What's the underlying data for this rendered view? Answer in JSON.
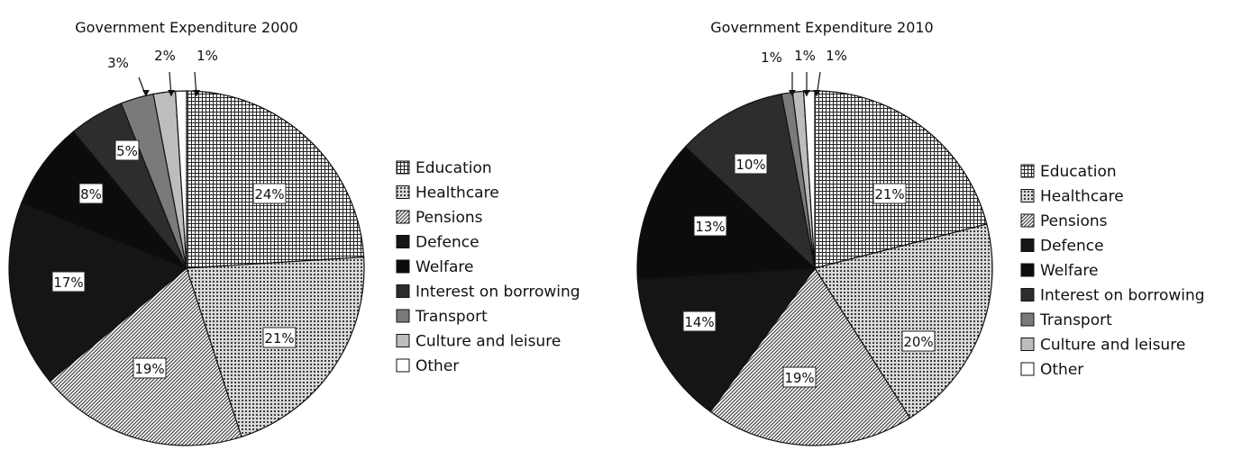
{
  "chart_data": [
    {
      "type": "pie",
      "title": "Government Expenditure 2000",
      "categories": [
        "Education",
        "Healthcare",
        "Pensions",
        "Defence",
        "Welfare",
        "Interest on borrowing",
        "Transport",
        "Culture and leisure",
        "Other"
      ],
      "values": [
        24,
        21,
        19,
        17,
        8,
        5,
        3,
        2,
        1
      ],
      "labels": [
        "24%",
        "21%",
        "19%",
        "17%",
        "8%",
        "5%",
        "3%",
        "2%",
        "1%"
      ],
      "legend_position": "right"
    },
    {
      "type": "pie",
      "title": "Government Expenditure 2010",
      "categories": [
        "Education",
        "Healthcare",
        "Pensions",
        "Defence",
        "Welfare",
        "Interest on borrowing",
        "Transport",
        "Culture and leisure",
        "Other"
      ],
      "values": [
        21,
        20,
        19,
        14,
        13,
        10,
        1,
        1,
        1
      ],
      "labels": [
        "21%",
        "20%",
        "19%",
        "14%",
        "13%",
        "10%",
        "1%",
        "1%",
        "1%"
      ],
      "legend_position": "right"
    }
  ],
  "colors": {
    "Education": "#ffffff",
    "Healthcare": "#ffffff",
    "Pensions": "#ffffff",
    "Defence": "#151515",
    "Welfare": "#0c0c0c",
    "Interest on borrowing": "#2d2d2d",
    "Transport": "#7a7a7a",
    "Culture and leisure": "#bdbdbd",
    "Other": "#ffffff"
  }
}
